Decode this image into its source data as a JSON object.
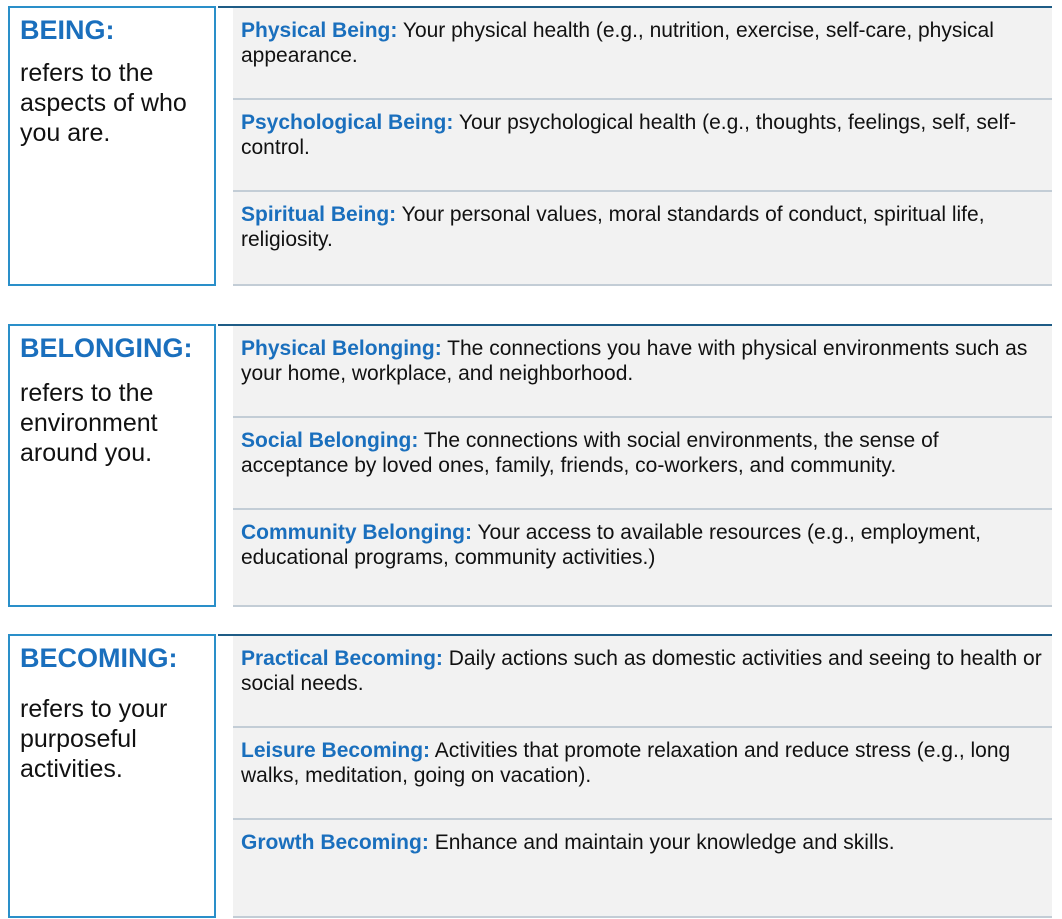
{
  "sections": [
    {
      "heading": "BEING:",
      "description": "refers to the aspects of who you are.",
      "items": [
        {
          "term": "Physical Being:",
          "text": "Your physical health (e.g., nutrition, exercise, self-care, physical appearance."
        },
        {
          "term": "Psychological Being:",
          "text": "Your psychological health (e.g., thoughts, feelings, self, self-control."
        },
        {
          "term": "Spiritual Being:",
          "text": "Your personal values, moral  standards of conduct, spiritual life, religiosity."
        }
      ]
    },
    {
      "heading": "BELONGING:",
      "description": "refers to the environment around you.",
      "items": [
        {
          "term": "Physical Belonging:",
          "text": "The connections you have with physical environments such as your home, workplace, and neighborhood."
        },
        {
          "term": "Social Belonging:",
          "text": "The connections with social environments, the sense of acceptance by loved ones, family, friends, co-workers, and community."
        },
        {
          "term": "Community  Belonging:",
          "text": "Your access to available resources (e.g., employment, educational programs, community activities.)"
        }
      ]
    },
    {
      "heading": "BECOMING:",
      "description": "refers to your purposeful activities.",
      "items": [
        {
          "term": "Practical Becoming:",
          "text": "Daily actions such as domestic activities and seeing to health or social needs."
        },
        {
          "term": "Leisure Becoming:",
          "text": "Activities that promote relaxation and reduce stress (e.g., long walks, meditation, going on vacation)."
        },
        {
          "term": "Growth Becoming:",
          "text": "Enhance and maintain your knowledge and skills."
        }
      ]
    }
  ]
}
